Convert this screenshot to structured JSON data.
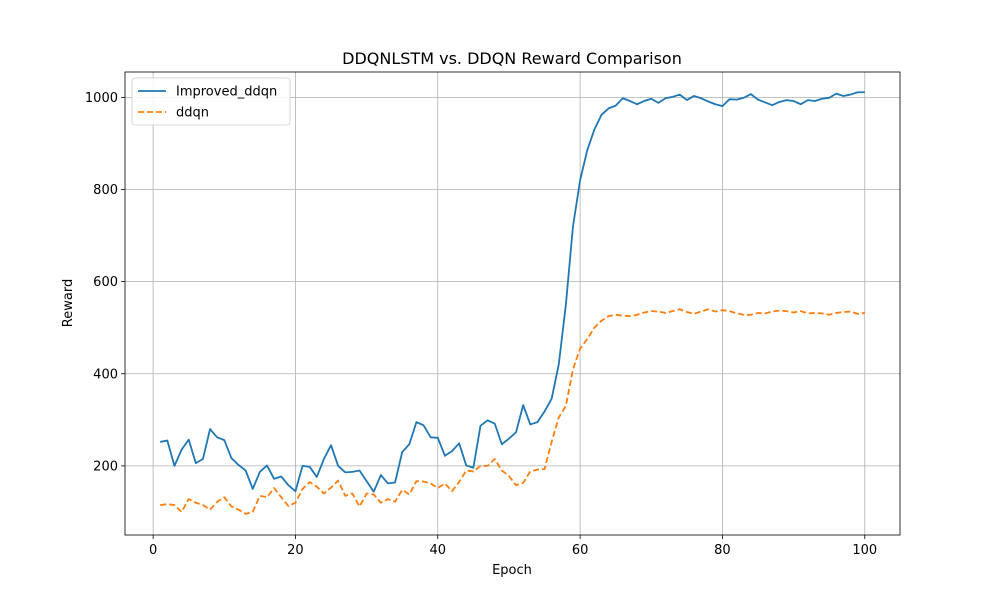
{
  "chart_data": {
    "type": "line",
    "title": "DDQNLSTM vs. DDQN Reward Comparison",
    "xlabel": "Epoch",
    "ylabel": "Reward",
    "xlim": [
      -3.95,
      104.95
    ],
    "ylim": [
      50,
      1055
    ],
    "xticks": [
      0,
      20,
      40,
      60,
      80,
      100
    ],
    "yticks": [
      200,
      400,
      600,
      800,
      1000
    ],
    "grid": true,
    "legend_position": "upper-left",
    "series": [
      {
        "name": "Improved_ddqn",
        "color": "#1f77b4",
        "dash": "solid",
        "x": [
          1,
          2,
          3,
          4,
          5,
          6,
          7,
          8,
          9,
          10,
          11,
          12,
          13,
          14,
          15,
          16,
          17,
          18,
          19,
          20,
          21,
          22,
          23,
          24,
          25,
          26,
          27,
          28,
          29,
          30,
          31,
          32,
          33,
          34,
          35,
          36,
          37,
          38,
          39,
          40,
          41,
          42,
          43,
          44,
          45,
          46,
          47,
          48,
          49,
          50,
          51,
          52,
          53,
          54,
          55,
          56,
          57,
          58,
          59,
          60,
          61,
          62,
          63,
          64,
          65,
          66,
          67,
          68,
          69,
          70,
          71,
          72,
          73,
          74,
          75,
          76,
          77,
          78,
          79,
          80,
          81,
          82,
          83,
          84,
          85,
          86,
          87,
          88,
          89,
          90,
          91,
          92,
          93,
          94,
          95,
          96,
          97,
          98,
          99,
          100
        ],
        "values": [
          252,
          255,
          200,
          235,
          257,
          206,
          215,
          280,
          262,
          256,
          217,
          202,
          190,
          150,
          187,
          201,
          172,
          177,
          158,
          145,
          200,
          198,
          176,
          215,
          245,
          200,
          186,
          187,
          190,
          167,
          144,
          180,
          162,
          164,
          230,
          247,
          295,
          288,
          262,
          261,
          222,
          232,
          249,
          201,
          196,
          287,
          299,
          292,
          247,
          259,
          273,
          332,
          290,
          295,
          318,
          346,
          420,
          550,
          720,
          820,
          885,
          930,
          962,
          976,
          982,
          998,
          992,
          985,
          992,
          997,
          988,
          998,
          1001,
          1006,
          994,
          1003,
          998,
          991,
          985,
          981,
          996,
          995,
          999,
          1007,
          995,
          989,
          983,
          990,
          994,
          992,
          985,
          994,
          992,
          997,
          999,
          1008,
          1003,
          1006,
          1011,
          1011
        ]
      },
      {
        "name": "ddqn",
        "color": "#ff7f0e",
        "dash": "dashed",
        "x": [
          1,
          2,
          3,
          4,
          5,
          6,
          7,
          8,
          9,
          10,
          11,
          12,
          13,
          14,
          15,
          16,
          17,
          18,
          19,
          20,
          21,
          22,
          23,
          24,
          25,
          26,
          27,
          28,
          29,
          30,
          31,
          32,
          33,
          34,
          35,
          36,
          37,
          38,
          39,
          40,
          41,
          42,
          43,
          44,
          45,
          46,
          47,
          48,
          49,
          50,
          51,
          52,
          53,
          54,
          55,
          56,
          57,
          58,
          59,
          60,
          61,
          62,
          63,
          64,
          65,
          66,
          67,
          68,
          69,
          70,
          71,
          72,
          73,
          74,
          75,
          76,
          77,
          78,
          79,
          80,
          81,
          82,
          83,
          84,
          85,
          86,
          87,
          88,
          89,
          90,
          91,
          92,
          93,
          94,
          95,
          96,
          97,
          98,
          99,
          100
        ],
        "values": [
          115,
          117,
          115,
          100,
          128,
          120,
          115,
          105,
          122,
          132,
          112,
          105,
          96,
          100,
          135,
          132,
          152,
          132,
          113,
          120,
          150,
          165,
          155,
          140,
          153,
          168,
          135,
          140,
          112,
          140,
          138,
          120,
          128,
          122,
          148,
          138,
          167,
          166,
          162,
          152,
          162,
          145,
          165,
          190,
          188,
          200,
          200,
          215,
          190,
          178,
          158,
          163,
          188,
          192,
          193,
          252,
          305,
          330,
          410,
          455,
          475,
          500,
          515,
          525,
          528,
          526,
          525,
          528,
          533,
          536,
          535,
          532,
          536,
          540,
          534,
          530,
          535,
          540,
          535,
          538,
          536,
          531,
          528,
          528,
          532,
          531,
          535,
          537,
          536,
          533,
          536,
          531,
          532,
          531,
          528,
          532,
          534,
          535,
          530,
          532
        ]
      }
    ]
  }
}
